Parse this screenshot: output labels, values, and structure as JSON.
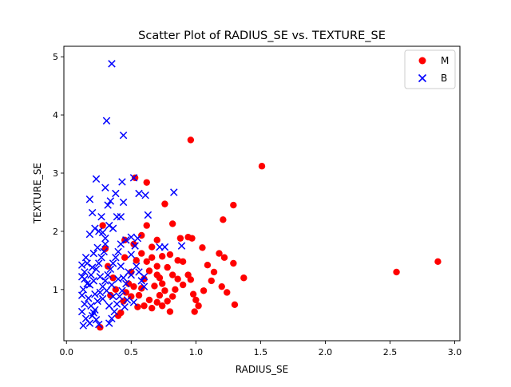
{
  "chart_data": {
    "type": "scatter",
    "title": "Scatter Plot of RADIUS_SE vs. TEXTURE_SE",
    "xlabel": "RADIUS_SE",
    "ylabel": "TEXTURE_SE",
    "xlim": [
      -0.02,
      3.04
    ],
    "ylim": [
      0.12,
      5.18
    ],
    "xticks": [
      0.0,
      0.5,
      1.0,
      1.5,
      2.0,
      2.5,
      3.0
    ],
    "xtick_labels": [
      "0.0",
      "0.5",
      "1.0",
      "1.5",
      "2.0",
      "2.5",
      "3.0"
    ],
    "yticks": [
      1,
      2,
      3,
      4,
      5
    ],
    "ytick_labels": [
      "1",
      "2",
      "3",
      "4",
      "5"
    ],
    "grid": false,
    "legend_position": "top-right",
    "series": [
      {
        "name": "M",
        "marker": "circle",
        "color": "#ff0000",
        "points": [
          [
            0.96,
            3.57
          ],
          [
            1.51,
            3.12
          ],
          [
            0.62,
            2.84
          ],
          [
            0.53,
            2.92
          ],
          [
            1.29,
            2.45
          ],
          [
            1.21,
            2.2
          ],
          [
            0.76,
            2.47
          ],
          [
            0.82,
            2.13
          ],
          [
            0.58,
            1.93
          ],
          [
            0.45,
            1.85
          ],
          [
            0.66,
            1.73
          ],
          [
            0.88,
            1.88
          ],
          [
            0.94,
            1.9
          ],
          [
            0.97,
            1.88
          ],
          [
            1.05,
            1.72
          ],
          [
            1.18,
            1.62
          ],
          [
            1.22,
            1.55
          ],
          [
            1.29,
            1.45
          ],
          [
            1.37,
            1.2
          ],
          [
            1.09,
            1.42
          ],
          [
            1.12,
            1.15
          ],
          [
            1.2,
            1.05
          ],
          [
            1.3,
            0.74
          ],
          [
            0.98,
            0.92
          ],
          [
            1.0,
            0.82
          ],
          [
            1.02,
            0.72
          ],
          [
            0.99,
            0.62
          ],
          [
            0.96,
            1.17
          ],
          [
            0.9,
            1.48
          ],
          [
            0.86,
            1.5
          ],
          [
            0.8,
            1.6
          ],
          [
            0.74,
            1.57
          ],
          [
            0.7,
            1.4
          ],
          [
            0.72,
            1.2
          ],
          [
            0.68,
            1.06
          ],
          [
            0.64,
            1.32
          ],
          [
            0.6,
            1.18
          ],
          [
            0.58,
            1.02
          ],
          [
            0.56,
            0.9
          ],
          [
            0.55,
            0.7
          ],
          [
            0.6,
            0.72
          ],
          [
            0.66,
            0.68
          ],
          [
            0.78,
            0.8
          ],
          [
            0.82,
            0.88
          ],
          [
            0.84,
            1.0
          ],
          [
            0.76,
            0.98
          ],
          [
            0.72,
            0.9
          ],
          [
            0.5,
            1.3
          ],
          [
            0.48,
            1.1
          ],
          [
            0.52,
            1.05
          ],
          [
            0.46,
            0.95
          ],
          [
            0.44,
            0.8
          ],
          [
            0.42,
            0.6
          ],
          [
            0.4,
            0.55
          ],
          [
            0.38,
            1.0
          ],
          [
            0.36,
            1.2
          ],
          [
            0.34,
            0.9
          ],
          [
            0.32,
            1.4
          ],
          [
            0.3,
            1.7
          ],
          [
            0.28,
            2.1
          ],
          [
            0.26,
            0.35
          ],
          [
            0.54,
            1.5
          ],
          [
            0.58,
            1.62
          ],
          [
            0.62,
            1.48
          ],
          [
            0.66,
            1.55
          ],
          [
            0.7,
            1.25
          ],
          [
            0.74,
            1.1
          ],
          [
            0.78,
            1.38
          ],
          [
            0.82,
            1.25
          ],
          [
            0.86,
            1.18
          ],
          [
            0.9,
            1.08
          ],
          [
            0.94,
            1.25
          ],
          [
            1.06,
            0.98
          ],
          [
            1.14,
            1.3
          ],
          [
            1.24,
            0.95
          ],
          [
            0.64,
            0.82
          ],
          [
            0.7,
            0.78
          ],
          [
            0.74,
            0.72
          ],
          [
            0.8,
            0.62
          ],
          [
            0.5,
            0.88
          ],
          [
            0.62,
            2.1
          ],
          [
            0.7,
            1.85
          ],
          [
            0.45,
            1.55
          ],
          [
            0.52,
            1.78
          ],
          [
            2.55,
            1.3
          ],
          [
            2.87,
            1.48
          ]
        ]
      },
      {
        "name": "B",
        "marker": "x",
        "color": "#0000ff",
        "points": [
          [
            0.35,
            4.88
          ],
          [
            0.31,
            3.9
          ],
          [
            0.44,
            3.65
          ],
          [
            0.52,
            2.92
          ],
          [
            0.23,
            2.9
          ],
          [
            0.3,
            2.75
          ],
          [
            0.43,
            2.85
          ],
          [
            0.38,
            2.65
          ],
          [
            0.56,
            2.65
          ],
          [
            0.61,
            2.62
          ],
          [
            0.83,
            2.67
          ],
          [
            0.44,
            2.5
          ],
          [
            0.34,
            2.52
          ],
          [
            0.18,
            2.55
          ],
          [
            0.2,
            2.32
          ],
          [
            0.27,
            2.25
          ],
          [
            0.39,
            2.25
          ],
          [
            0.42,
            2.25
          ],
          [
            0.63,
            2.28
          ],
          [
            0.32,
            2.45
          ],
          [
            0.22,
            2.05
          ],
          [
            0.25,
            2.0
          ],
          [
            0.28,
            1.98
          ],
          [
            0.33,
            2.1
          ],
          [
            0.36,
            2.05
          ],
          [
            0.3,
            1.88
          ],
          [
            0.18,
            1.95
          ],
          [
            0.46,
            1.85
          ],
          [
            0.5,
            1.9
          ],
          [
            0.55,
            1.88
          ],
          [
            0.53,
            1.75
          ],
          [
            0.72,
            1.73
          ],
          [
            0.76,
            1.73
          ],
          [
            0.89,
            1.75
          ],
          [
            0.21,
            1.62
          ],
          [
            0.15,
            1.55
          ],
          [
            0.12,
            1.42
          ],
          [
            0.14,
            1.3
          ],
          [
            0.12,
            1.22
          ],
          [
            0.16,
            1.1
          ],
          [
            0.13,
            1.0
          ],
          [
            0.12,
            0.9
          ],
          [
            0.14,
            0.75
          ],
          [
            0.12,
            0.62
          ],
          [
            0.15,
            0.5
          ],
          [
            0.13,
            0.38
          ],
          [
            0.18,
            0.42
          ],
          [
            0.2,
            0.55
          ],
          [
            0.22,
            0.65
          ],
          [
            0.24,
            0.8
          ],
          [
            0.26,
            0.95
          ],
          [
            0.28,
            1.05
          ],
          [
            0.3,
            1.15
          ],
          [
            0.32,
            1.25
          ],
          [
            0.34,
            1.35
          ],
          [
            0.36,
            1.45
          ],
          [
            0.38,
            1.55
          ],
          [
            0.4,
            1.65
          ],
          [
            0.42,
            1.4
          ],
          [
            0.44,
            1.2
          ],
          [
            0.46,
            1.1
          ],
          [
            0.48,
            1.3
          ],
          [
            0.5,
            1.25
          ],
          [
            0.54,
            1.4
          ],
          [
            0.58,
            1.15
          ],
          [
            0.6,
            1.05
          ],
          [
            0.19,
            1.25
          ],
          [
            0.21,
            1.15
          ],
          [
            0.23,
            1.35
          ],
          [
            0.25,
            1.45
          ],
          [
            0.27,
            1.55
          ],
          [
            0.29,
            1.65
          ],
          [
            0.17,
            0.85
          ],
          [
            0.19,
            0.72
          ],
          [
            0.21,
            0.6
          ],
          [
            0.23,
            0.48
          ],
          [
            0.25,
            0.4
          ],
          [
            0.33,
            0.42
          ],
          [
            0.35,
            0.5
          ],
          [
            0.37,
            0.62
          ],
          [
            0.39,
            0.75
          ],
          [
            0.41,
            0.88
          ],
          [
            0.43,
            0.98
          ],
          [
            0.45,
            0.7
          ],
          [
            0.47,
            0.82
          ],
          [
            0.52,
            0.78
          ],
          [
            0.3,
            1.78
          ],
          [
            0.24,
            1.72
          ],
          [
            0.16,
            1.45
          ],
          [
            0.2,
            1.38
          ],
          [
            0.26,
            1.22
          ],
          [
            0.31,
            0.98
          ],
          [
            0.35,
            1.08
          ],
          [
            0.22,
            0.92
          ],
          [
            0.28,
            0.84
          ],
          [
            0.14,
            1.18
          ],
          [
            0.4,
            1.18
          ],
          [
            0.33,
            0.72
          ],
          [
            0.18,
            1.08
          ],
          [
            0.36,
            0.88
          ],
          [
            0.5,
            1.6
          ],
          [
            0.56,
            1.3
          ],
          [
            0.6,
            1.22
          ],
          [
            0.42,
            1.78
          ]
        ]
      }
    ]
  }
}
